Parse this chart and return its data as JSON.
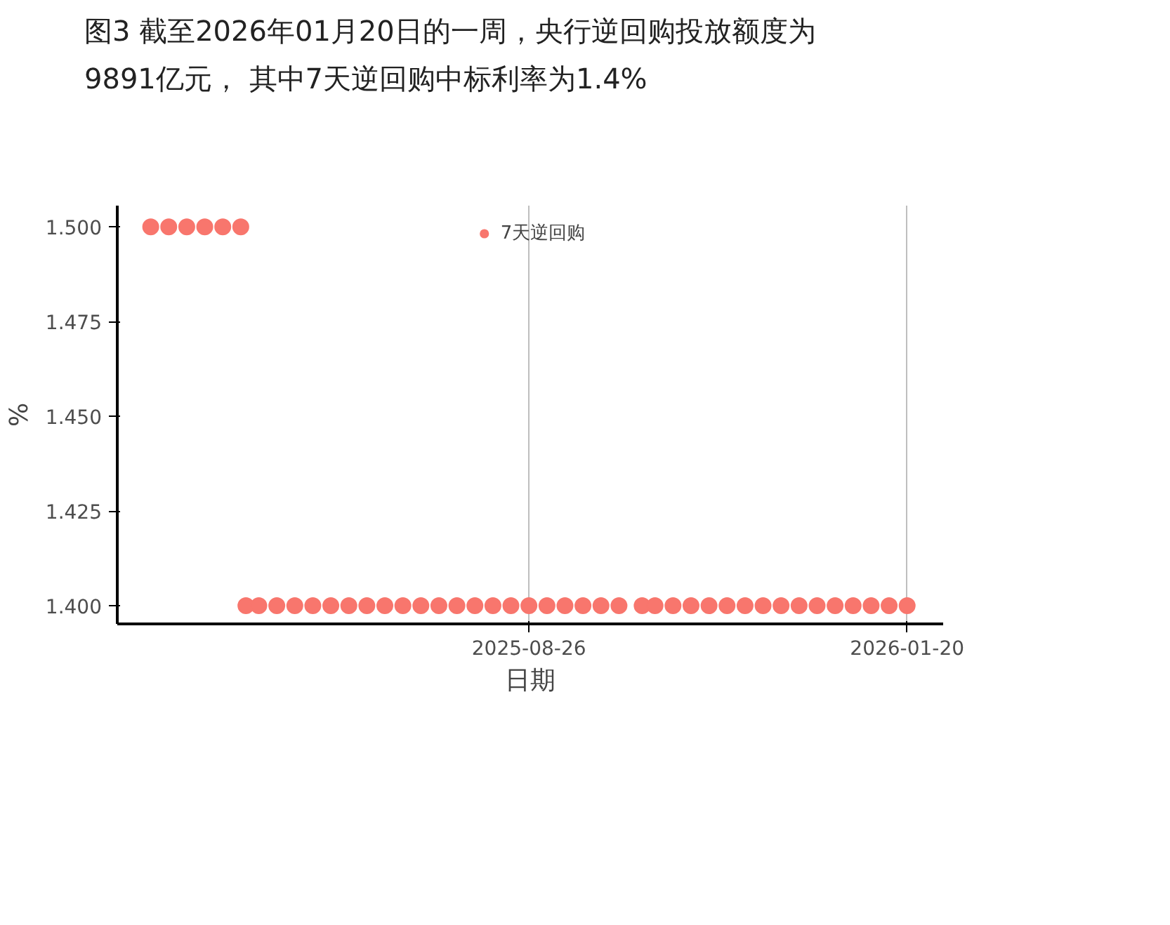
{
  "chart_data": {
    "type": "scatter",
    "title": "图3  截至2026年01月20日的一周，央行逆回购投放额度为9891亿元， 其中7天逆回购中标利率为1.4%",
    "xlabel": "日期",
    "ylabel": "%",
    "series": [
      {
        "name": "7天逆回购",
        "color": "#f8766d",
        "x": [
          "2025-04-01",
          "2025-04-08",
          "2025-04-15",
          "2025-04-22",
          "2025-04-29",
          "2025-05-06"
        ],
        "values": [
          1.5,
          1.5,
          1.5,
          1.5,
          1.5,
          1.5
        ]
      },
      {
        "name": null,
        "color": "#f8766d",
        "x": [
          "2025-05-08",
          "2025-05-13",
          "2025-05-20",
          "2025-05-27",
          "2025-06-03",
          "2025-06-10",
          "2025-06-17",
          "2025-06-24",
          "2025-07-01",
          "2025-07-08",
          "2025-07-15",
          "2025-07-22",
          "2025-07-29",
          "2025-08-05",
          "2025-08-12",
          "2025-08-19",
          "2025-08-26",
          "2025-09-02",
          "2025-09-09",
          "2025-09-16",
          "2025-09-23",
          "2025-09-30",
          "2025-10-09",
          "2025-10-14",
          "2025-10-21",
          "2025-10-28",
          "2025-11-04",
          "2025-11-11",
          "2025-11-18",
          "2025-11-25",
          "2025-12-02",
          "2025-12-09",
          "2025-12-16",
          "2025-12-23",
          "2025-12-30",
          "2026-01-06",
          "2026-01-13",
          "2026-01-20"
        ],
        "values": [
          1.4,
          1.4,
          1.4,
          1.4,
          1.4,
          1.4,
          1.4,
          1.4,
          1.4,
          1.4,
          1.4,
          1.4,
          1.4,
          1.4,
          1.4,
          1.4,
          1.4,
          1.4,
          1.4,
          1.4,
          1.4,
          1.4,
          1.4,
          1.4,
          1.4,
          1.4,
          1.4,
          1.4,
          1.4,
          1.4,
          1.4,
          1.4,
          1.4,
          1.4,
          1.4,
          1.4,
          1.4,
          1.4
        ]
      }
    ],
    "xlim": [
      "2025-03-19",
      "2026-02-03"
    ],
    "xticks": [
      "2025-08-26",
      "2026-01-20"
    ],
    "ylim": [
      1.3952,
      1.5056
    ],
    "yticks": [
      {
        "value": 1.4,
        "label": "1.400"
      },
      {
        "value": 1.425,
        "label": "1.425"
      },
      {
        "value": 1.45,
        "label": "1.450"
      },
      {
        "value": 1.475,
        "label": "1.475"
      },
      {
        "value": 1.5,
        "label": "1.500"
      }
    ],
    "grid": "x",
    "legend": "top",
    "marker": "circle"
  }
}
